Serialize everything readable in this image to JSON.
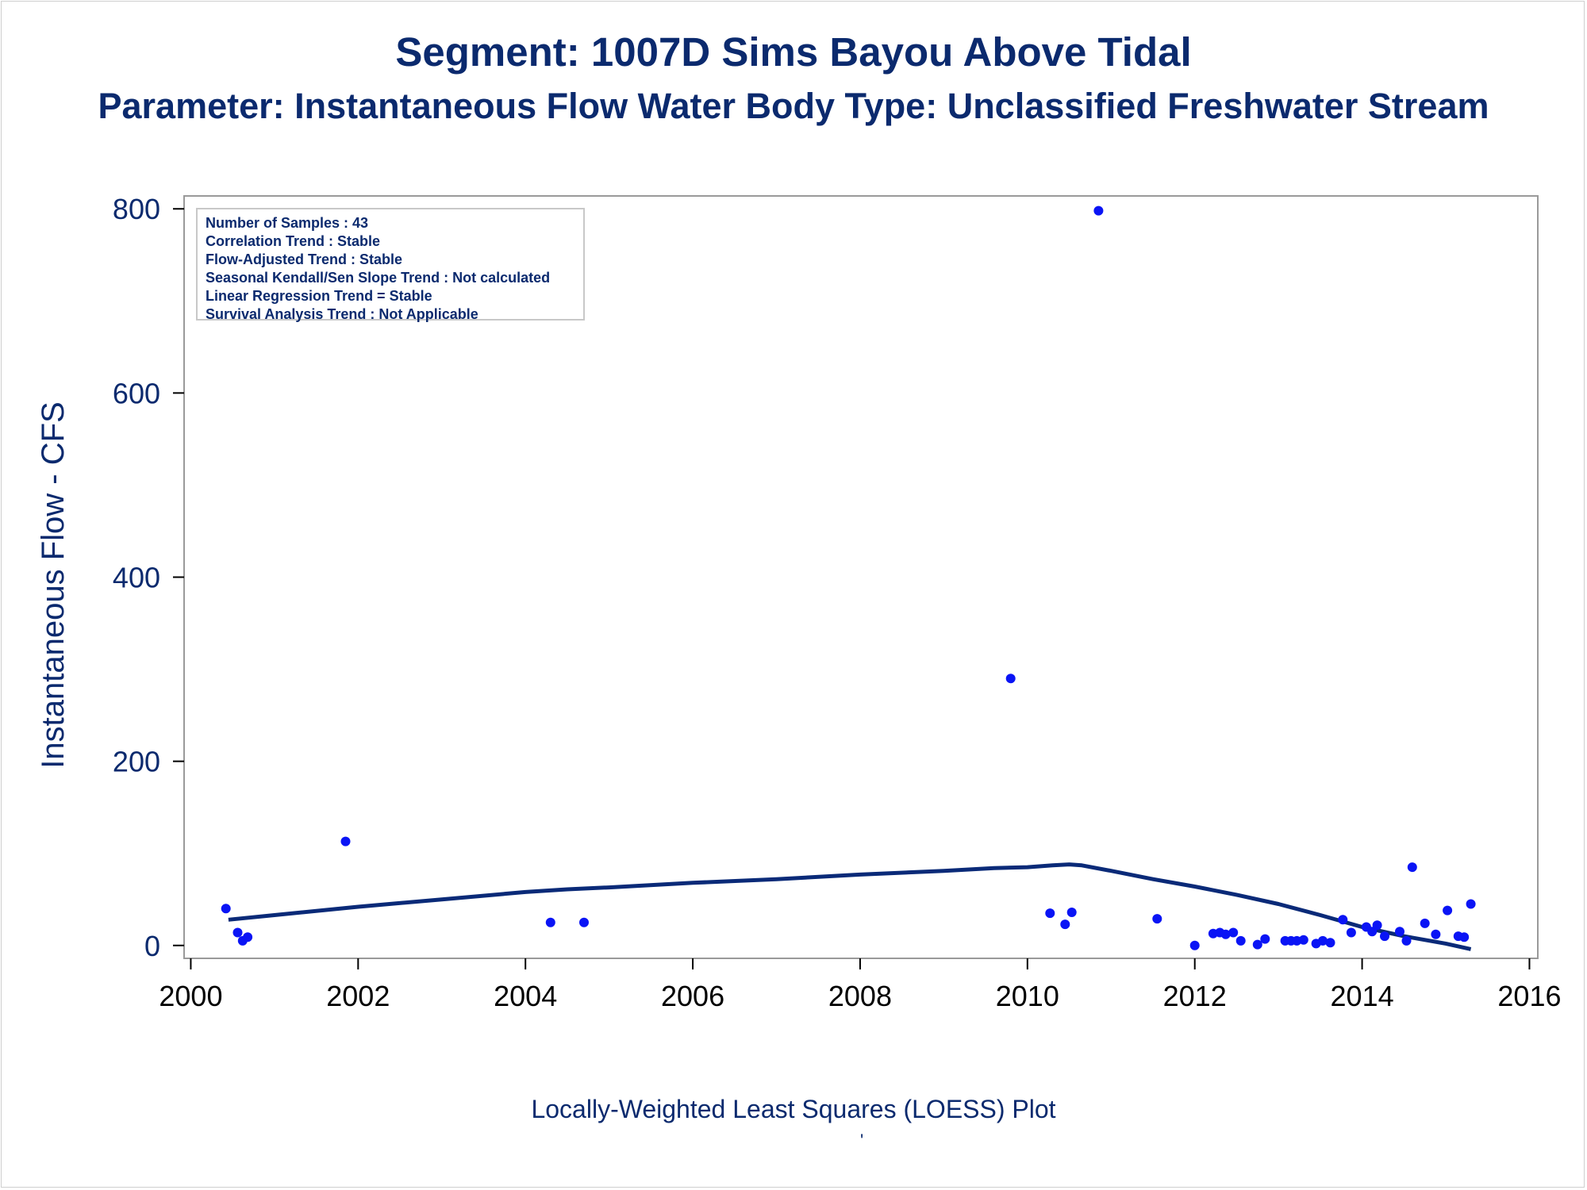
{
  "title": "Segment: 1007D  Sims Bayou Above Tidal",
  "subtitle": "Parameter: Instantaneous Flow   Water Body Type: Unclassified Freshwater Stream",
  "footnote": "Locally-Weighted Least Squares (LOESS) Plot",
  "footnote_mark": "'",
  "stats": [
    "Number of Samples : 43",
    "Correlation Trend : Stable",
    "Flow-Adjusted Trend : Stable",
    "Seasonal Kendall/Sen Slope Trend : Not calculated",
    "Linear Regression Trend = Stable",
    "Survival Analysis Trend : Not Applicable"
  ],
  "colors": {
    "text": "#0b2a6e",
    "points": "#0a14f5",
    "line": "#0a2a78",
    "axis": "#9a9a9a"
  },
  "chart_data": {
    "type": "scatter",
    "title": "Segment: 1007D  Sims Bayou Above Tidal",
    "subtitle": "Parameter: Instantaneous Flow   Water Body Type: Unclassified Freshwater Stream",
    "xlabel": "",
    "ylabel": "Instantaneous Flow - CFS",
    "xlim": [
      1999.92,
      2016.1
    ],
    "ylim": [
      -14,
      814
    ],
    "xticks": [
      2000,
      2002,
      2004,
      2006,
      2008,
      2010,
      2012,
      2014,
      2016
    ],
    "yticks": [
      0,
      200,
      400,
      600,
      800
    ],
    "grid": false,
    "legend": "none",
    "series": [
      {
        "type": "scatter",
        "x": [
          2000.42,
          2000.56,
          2000.62,
          2000.68,
          2001.85,
          2004.3,
          2004.7,
          2009.8,
          2010.27,
          2010.45,
          2010.53,
          2010.85,
          2011.55,
          2012.0,
          2012.22,
          2012.3,
          2012.37,
          2012.46,
          2012.55,
          2012.75,
          2012.84,
          2013.08,
          2013.15,
          2013.22,
          2013.3,
          2013.45,
          2013.53,
          2013.62,
          2013.77,
          2013.87,
          2014.05,
          2014.12,
          2014.18,
          2014.27,
          2014.45,
          2014.53,
          2014.6,
          2014.75,
          2014.88,
          2015.02,
          2015.15,
          2015.22,
          2015.3
        ],
        "y": [
          40,
          14,
          5,
          9,
          113,
          25,
          25,
          290,
          35,
          23,
          36,
          798,
          29,
          0,
          13,
          14,
          12,
          14,
          5,
          1,
          7,
          5,
          5,
          5,
          6,
          2,
          5,
          3,
          28,
          14,
          20,
          15,
          22,
          10,
          15,
          5,
          85,
          24,
          12,
          38,
          10,
          9,
          45
        ]
      },
      {
        "type": "line",
        "name": "",
        "x": [
          2000.45,
          2001.0,
          2002.0,
          2003.0,
          2004.0,
          2004.5,
          2005.0,
          2006.0,
          2007.0,
          2008.0,
          2009.0,
          2009.6,
          2010.0,
          2010.3,
          2010.5,
          2010.65,
          2011.0,
          2011.5,
          2012.0,
          2012.5,
          2013.0,
          2013.5,
          2014.0,
          2014.5,
          2015.0,
          2015.3
        ],
        "y": [
          28,
          33,
          42,
          50,
          58,
          61,
          63,
          68,
          72,
          77,
          81,
          84,
          85,
          87,
          88,
          87,
          81,
          72,
          64,
          55,
          45,
          33,
          20,
          10,
          2,
          -4
        ]
      }
    ]
  }
}
